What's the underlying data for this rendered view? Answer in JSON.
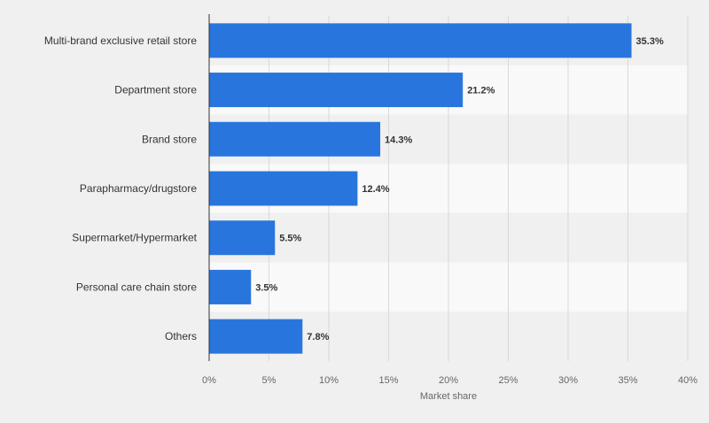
{
  "chart_data": {
    "type": "bar",
    "orientation": "horizontal",
    "categories": [
      "Multi-brand exclusive retail store",
      "Department store",
      "Brand store",
      "Parapharmacy/drugstore",
      "Supermarket/Hypermarket",
      "Personal care chain store",
      "Others"
    ],
    "values": [
      35.3,
      21.2,
      14.3,
      12.4,
      5.5,
      3.5,
      7.8
    ],
    "value_labels": [
      "35.3%",
      "21.2%",
      "14.3%",
      "12.4%",
      "5.5%",
      "3.5%",
      "7.8%"
    ],
    "xlabel": "Market share",
    "ylabel": "",
    "xlim": [
      0,
      40
    ],
    "ticks": [
      0,
      5,
      10,
      15,
      20,
      25,
      30,
      35,
      40
    ],
    "tick_labels": [
      "0%",
      "5%",
      "10%",
      "15%",
      "20%",
      "25%",
      "30%",
      "35%",
      "40%"
    ],
    "grid": true,
    "legend": "none",
    "colors": {
      "bar": "#2876dd",
      "row_band": "#f9f9f9",
      "background": "#f0f0f0",
      "gridline": "#d9d9d9",
      "axis": "#333333",
      "category_text": "#333333",
      "value_text": "#333333",
      "tick_text": "#666666"
    }
  }
}
